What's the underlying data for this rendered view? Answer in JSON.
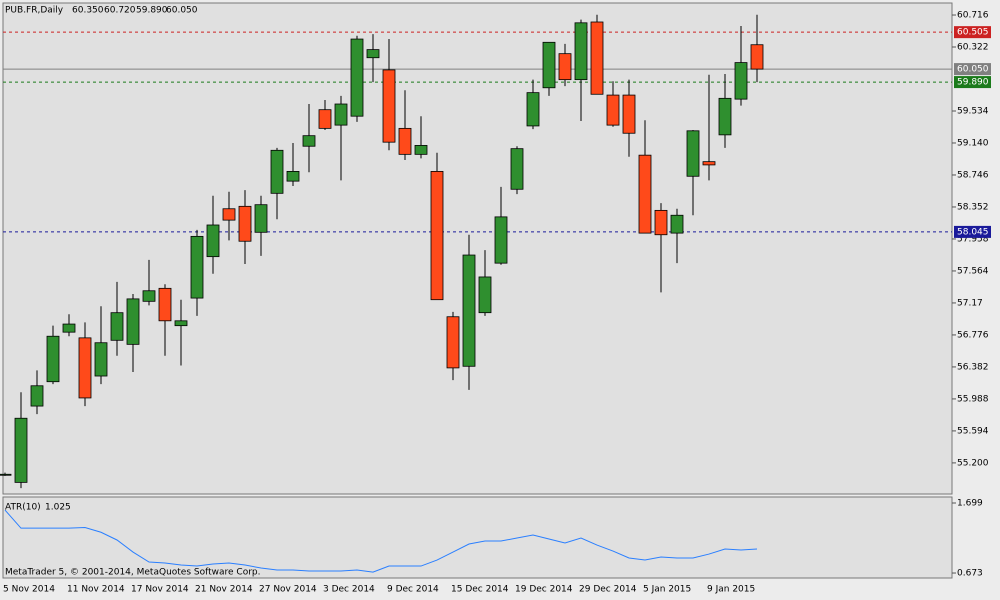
{
  "chart_data": {
    "type": "candlestick",
    "title": "PUB.FR,Daily",
    "title_values": [
      "60.350",
      "60.720",
      "59.890",
      "60.050"
    ],
    "categories": [
      "5 Nov 2014",
      null,
      null,
      null,
      "11 Nov 2014",
      null,
      null,
      null,
      "17 Nov 2014",
      null,
      null,
      null,
      "21 Nov 2014",
      null,
      null,
      null,
      "27 Nov 2014",
      null,
      null,
      null,
      "3 Dec 2014",
      null,
      null,
      null,
      "9 Dec 2014",
      null,
      null,
      null,
      "15 Dec 2014",
      null,
      null,
      null,
      "19 Dec 2014",
      null,
      null,
      null,
      "29 Dec 2014",
      null,
      null,
      null,
      "5 Jan 2015",
      null,
      null,
      null,
      "9 Jan 2015",
      null,
      null,
      null
    ],
    "open": [
      55.05,
      54.96,
      55.9,
      56.2,
      56.81,
      56.74,
      56.27,
      56.71,
      56.66,
      57.19,
      57.35,
      56.89,
      57.23,
      57.74,
      58.33,
      58.36,
      58.04,
      58.52,
      58.67,
      59.1,
      59.55,
      59.36,
      59.47,
      60.19,
      60.04,
      59.32,
      59.0,
      58.79,
      57.0,
      56.39,
      57.05,
      57.66,
      58.57,
      59.35,
      59.82,
      60.24,
      59.92,
      60.63,
      59.73,
      59.73,
      58.99,
      58.31,
      58.03,
      58.73,
      58.91,
      59.24,
      59.68,
      60.35
    ],
    "high": [
      55.08,
      56.07,
      56.34,
      56.89,
      57.03,
      56.93,
      57.13,
      57.43,
      57.28,
      57.7,
      57.4,
      57.21,
      58.07,
      58.49,
      58.54,
      58.56,
      58.49,
      59.08,
      59.14,
      59.62,
      59.67,
      59.72,
      60.46,
      60.48,
      60.42,
      59.79,
      59.47,
      59.02,
      57.06,
      58.01,
      57.82,
      58.6,
      59.1,
      59.92,
      60.38,
      60.36,
      60.66,
      60.72,
      59.9,
      59.92,
      59.42,
      58.4,
      58.33,
      59.3,
      59.98,
      59.99,
      60.58,
      60.72
    ],
    "low": [
      55.04,
      54.89,
      55.8,
      56.17,
      56.76,
      55.9,
      56.17,
      56.52,
      56.32,
      57.14,
      56.52,
      56.4,
      57.01,
      57.53,
      57.94,
      57.65,
      57.75,
      58.2,
      58.61,
      58.78,
      59.3,
      58.68,
      59.4,
      59.89,
      59.05,
      58.93,
      58.95,
      57.21,
      56.22,
      56.1,
      57.01,
      57.64,
      58.51,
      59.31,
      59.72,
      59.84,
      59.41,
      59.74,
      59.34,
      58.97,
      58.03,
      57.3,
      57.66,
      58.25,
      58.68,
      59.08,
      59.6,
      59.89
    ],
    "close": [
      55.06,
      55.75,
      56.15,
      56.76,
      56.91,
      56.0,
      56.68,
      57.05,
      57.22,
      57.32,
      56.95,
      56.95,
      57.99,
      58.13,
      58.19,
      57.93,
      58.38,
      59.05,
      58.79,
      59.23,
      59.32,
      59.62,
      60.42,
      60.29,
      59.15,
      59.0,
      59.11,
      57.21,
      56.37,
      57.76,
      57.49,
      58.23,
      59.07,
      59.76,
      60.38,
      59.92,
      60.62,
      59.74,
      59.36,
      59.26,
      58.03,
      58.01,
      58.25,
      59.29,
      58.87,
      59.69,
      60.13,
      60.05
    ],
    "up_color": "#2f8f2f",
    "down_color": "#ff4a1a",
    "ylim": [
      54.817,
      60.864
    ],
    "yticks": [
      60.716,
      60.322,
      59.534,
      {
        "value": 59.14,
        "label": "59.140"
      },
      58.746,
      58.352,
      57.958,
      57.564,
      57.17,
      56.776,
      56.382,
      55.988,
      55.594,
      {
        "value": 55.2,
        "label": "55.200"
      }
    ],
    "levels": [
      {
        "value": 60.505,
        "label": "60.505",
        "color": "#cc2222",
        "dashed": true
      },
      {
        "value": 60.05,
        "label": "60.050",
        "color": "#808080",
        "dashed": false
      },
      {
        "value": 59.89,
        "label": "59.890",
        "color": "#1a7a1a",
        "dashed": true
      },
      {
        "value": 58.045,
        "label": "58.045",
        "color": "#1a1a9a",
        "dashed": true
      }
    ],
    "indicator": {
      "label": "ATR(10)",
      "value": 1.025,
      "color": "#2a7fff",
      "values": [
        1.596,
        1.33,
        1.33,
        1.33,
        1.33,
        1.34,
        1.27,
        1.157,
        0.98,
        0.834,
        0.82,
        0.79,
        0.775,
        0.805,
        0.82,
        0.79,
        0.746,
        0.717,
        0.717,
        0.702,
        0.702,
        0.702,
        0.717,
        0.687,
        0.775,
        0.775,
        0.775,
        0.863,
        0.98,
        1.098,
        1.142,
        1.142,
        1.186,
        1.23,
        1.171,
        1.113,
        1.186,
        1.083,
        0.995,
        0.893,
        0.863,
        0.907,
        0.893,
        0.893,
        0.951,
        1.025,
        1.01,
        1.025
      ],
      "ylim": [
        0.6,
        1.787
      ],
      "yticks": [
        1.699,
        0.673
      ]
    },
    "footer": "MetaTrader 5, © 2001-2014, MetaQuotes Software Corp."
  }
}
